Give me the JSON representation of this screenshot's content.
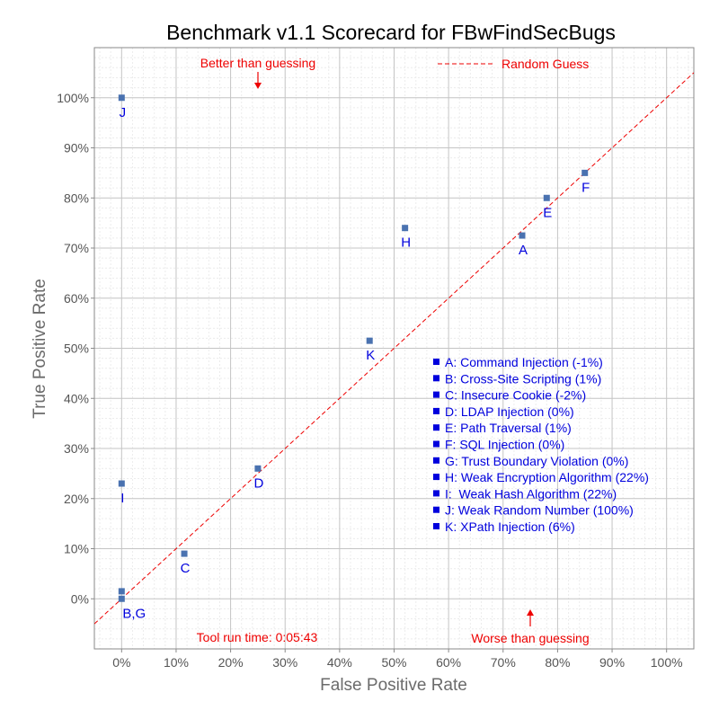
{
  "chart_data": {
    "type": "scatter",
    "title": "Benchmark v1.1 Scorecard for FBwFindSecBugs",
    "xlabel": "False Positive Rate",
    "ylabel": "True Positive Rate",
    "xlim": [
      -5,
      105
    ],
    "ylim": [
      -10,
      110
    ],
    "x_ticks": [
      "0%",
      "10%",
      "20%",
      "30%",
      "40%",
      "50%",
      "60%",
      "70%",
      "80%",
      "90%",
      "100%"
    ],
    "y_ticks": [
      "0%",
      "10%",
      "20%",
      "30%",
      "40%",
      "50%",
      "60%",
      "70%",
      "80%",
      "90%",
      "100%"
    ],
    "grid": true,
    "points": [
      {
        "label": "A",
        "x": 73.5,
        "y": 72.5
      },
      {
        "label": "B",
        "x": 0,
        "y": 1.5
      },
      {
        "label": "C",
        "x": 11.5,
        "y": 9
      },
      {
        "label": "D",
        "x": 25,
        "y": 26
      },
      {
        "label": "E",
        "x": 78,
        "y": 80
      },
      {
        "label": "F",
        "x": 85,
        "y": 85
      },
      {
        "label": "G",
        "x": 0,
        "y": 0
      },
      {
        "label": "H",
        "x": 52,
        "y": 74
      },
      {
        "label": "I",
        "x": 0,
        "y": 23
      },
      {
        "label": "J",
        "x": 0,
        "y": 100
      },
      {
        "label": "K",
        "x": 45.5,
        "y": 51.5
      }
    ],
    "point_labels": [
      {
        "text": "A",
        "x": 73.5,
        "y": 72.5,
        "pos": "below"
      },
      {
        "text": "B,G",
        "x": 0,
        "y": 0,
        "pos": "below-right"
      },
      {
        "text": "C",
        "x": 11.5,
        "y": 9,
        "pos": "below"
      },
      {
        "text": "D",
        "x": 25,
        "y": 26,
        "pos": "below"
      },
      {
        "text": "E",
        "x": 78,
        "y": 80,
        "pos": "below"
      },
      {
        "text": "F",
        "x": 85,
        "y": 85,
        "pos": "below"
      },
      {
        "text": "H",
        "x": 52,
        "y": 74,
        "pos": "below"
      },
      {
        "text": "I",
        "x": 0,
        "y": 23,
        "pos": "below"
      },
      {
        "text": "J",
        "x": 0,
        "y": 100,
        "pos": "below"
      },
      {
        "text": "K",
        "x": 45.5,
        "y": 51.5,
        "pos": "below"
      }
    ],
    "reference_line": {
      "name": "Random Guess",
      "from": [
        -5,
        -5
      ],
      "to": [
        105,
        105
      ]
    },
    "legend_entries": [
      "A: Command Injection (-1%)",
      "B: Cross-Site Scripting (1%)",
      "C: Insecure Cookie (-2%)",
      "D: LDAP Injection (0%)",
      "E: Path Traversal (1%)",
      "F: SQL Injection (0%)",
      "G: Trust Boundary Violation (0%)",
      "H: Weak Encryption Algorithm (22%)",
      "I:  Weak Hash Algorithm (22%)",
      "J: Weak Random Number (100%)",
      "K: XPath Injection (6%)"
    ],
    "annotations": {
      "better": "Better than guessing",
      "worse": "Worse than guessing",
      "runtime": "Tool run time: 0:05:43"
    },
    "colors": {
      "marker": "#4a72b0",
      "label": "#0000dd",
      "reference": "#ee0000",
      "grid_major": "#c4c4c4",
      "grid_minor": "#ececec"
    }
  }
}
